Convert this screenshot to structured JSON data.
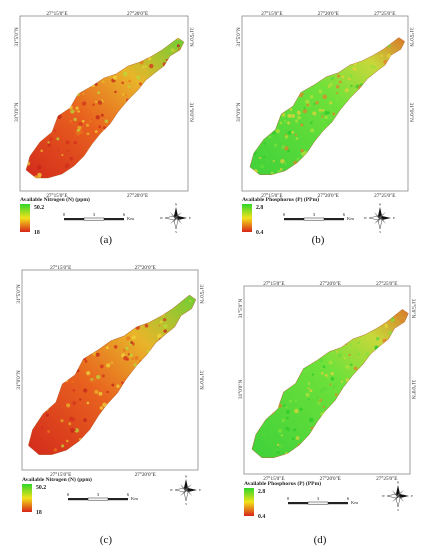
{
  "panels": [
    {
      "caption": "(a)",
      "top_coords": [
        "27°15'0\"E",
        "27°20'0\"E"
      ],
      "bottom_coords": [
        "27°15'0\"E",
        "27°20'0\"E"
      ],
      "left_coords": [
        "31°5'0\"N",
        "31°0'0\"N"
      ],
      "right_coords": [
        "31°5'0\"N",
        "31°0'0\"N"
      ],
      "legend_title": "Available Nitrogen (N) (ppm)",
      "legend_max": "50.2",
      "legend_min": "18",
      "scale_labels": [
        "0",
        "3",
        "6",
        "Km"
      ],
      "compass_letters": [
        "N",
        "E",
        "S",
        "W"
      ],
      "dominant": "red-orange"
    },
    {
      "caption": "(b)",
      "top_coords": [
        "27°15'0\"E",
        "27°20'0\"E",
        "27°25'0\"E"
      ],
      "bottom_coords": [
        "27°15'0\"E",
        "27°20'0\"E",
        "27°25'0\"E"
      ],
      "left_coords": [
        "31°5'0\"N",
        "31°0'0\"N"
      ],
      "right_coords": [
        "31°5'0\"N",
        "31°0'0\"N"
      ],
      "legend_title": "Available Phosphorus (P) (PPm)",
      "legend_max": "2.8",
      "legend_min": "0.4",
      "scale_labels": [
        "0",
        "3",
        "6",
        "Km"
      ],
      "compass_letters": [
        "N",
        "E",
        "S",
        "W"
      ],
      "dominant": "green"
    },
    {
      "caption": "(c)",
      "top_coords": [
        "27°15'0\"E",
        "27°20'0\"E"
      ],
      "bottom_coords": [
        "27°15'0\"E",
        "27°20'0\"E"
      ],
      "left_coords": [
        "31°5'0\"N",
        "31°0'0\"N"
      ],
      "right_coords": [
        "31°5'0\"N",
        "31°0'0\"N"
      ],
      "legend_title": "Available Nitrogen (N) (ppm)",
      "legend_max": "50.2",
      "legend_min": "18",
      "scale_labels": [
        "0",
        "3",
        "6",
        "Km"
      ],
      "compass_letters": [
        "N",
        "E",
        "S",
        "W"
      ],
      "dominant": "red-orange"
    },
    {
      "caption": "(d)",
      "top_coords": [
        "27°15'0\"E",
        "27°20'0\"E",
        "27°25'0\"E"
      ],
      "bottom_coords": [
        "27°15'0\"E",
        "27°20'0\"E",
        "27°25'0\"E"
      ],
      "left_coords": [
        "31°5'0\"N",
        "31°0'0\"N"
      ],
      "right_coords": [
        "31°5'0\"N",
        "31°0'0\"N"
      ],
      "legend_title": "Available Phosphorus (P) (PPm)",
      "legend_max": "2.8",
      "legend_min": "0.4",
      "scale_labels": [
        "0",
        "3",
        "6",
        "Km"
      ],
      "compass_letters": [
        "N",
        "E",
        "S",
        "W"
      ],
      "dominant": "green"
    }
  ],
  "colors": {
    "legend_high": "#2fd62a",
    "legend_mid": "#f2e21b",
    "legend_low": "#d8241a",
    "frame": "#888888"
  }
}
